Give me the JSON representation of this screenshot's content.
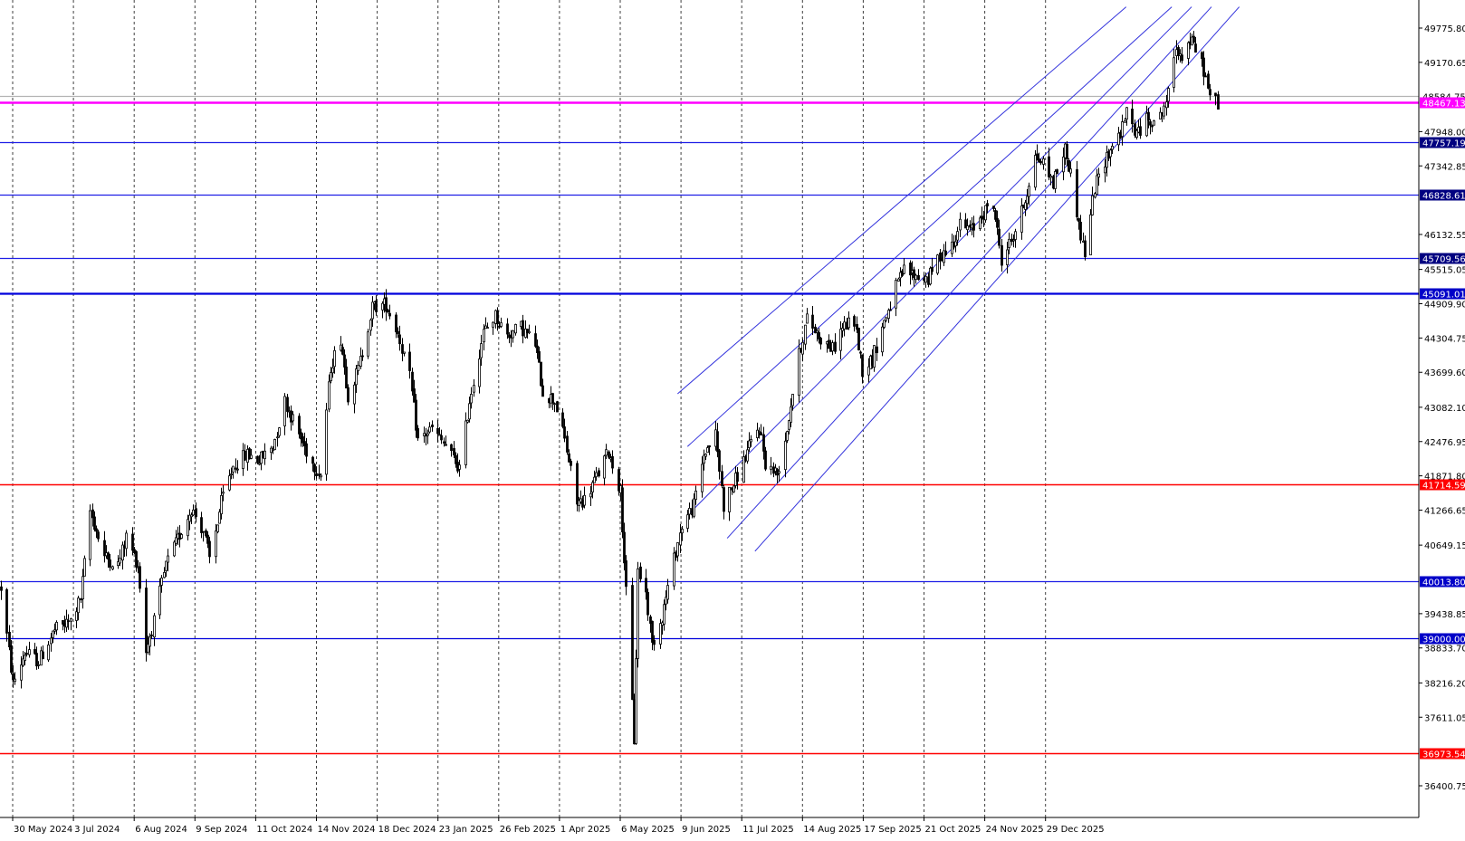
{
  "chart_data": {
    "type": "candlestick",
    "x_axis": {
      "tick_labels": [
        "30 May 2024",
        "3 Jul 2024",
        "6 Aug 2024",
        "9 Sep 2024",
        "11 Oct 2024",
        "14 Nov 2024",
        "18 Dec 2024",
        "23 Jan 2025",
        "26 Feb 2025",
        "1 Apr 2025",
        "6 May 2025",
        "9 Jun 2025",
        "11 Jul 2025",
        "14 Aug 2025",
        "17 Sep 2025",
        "21 Oct 2025",
        "24 Nov 2025",
        "29 Dec 2025"
      ],
      "grid": "vertical dotted"
    },
    "y_axis": {
      "range": [
        36200,
        50150
      ],
      "tick_labels": [
        "49775.80",
        "49170.65",
        "47948.00",
        "47342.85",
        "46132.55",
        "45515.05",
        "44909.90",
        "44304.75",
        "43699.60",
        "43082.10",
        "42476.95",
        "41871.80",
        "41266.65",
        "40649.15",
        "39438.85",
        "38833.70",
        "38216.20",
        "37611.05",
        "36400.75"
      ],
      "side": "right"
    },
    "horizontal_levels": [
      {
        "value": 48584.75,
        "label": "48584.75",
        "color": "#b4b4b4",
        "tag_bg": "#ffffff",
        "tag_fg": "#000000",
        "kind": "bid"
      },
      {
        "value": 48467.13,
        "label": "48467.13",
        "color": "#ff00ff",
        "tag_bg": "#ff00ff",
        "tag_fg": "#ffffff",
        "kind": "current"
      },
      {
        "value": 47757.19,
        "label": "47757.19",
        "color": "#1e1ee6",
        "tag_bg": "#000080",
        "tag_fg": "#ffffff",
        "kind": "level"
      },
      {
        "value": 46828.61,
        "label": "46828.61",
        "color": "#1e1ee6",
        "tag_bg": "#000080",
        "tag_fg": "#ffffff",
        "kind": "level"
      },
      {
        "value": 45709.56,
        "label": "45709.56",
        "color": "#1e1ee6",
        "tag_bg": "#000080",
        "tag_fg": "#ffffff",
        "kind": "level"
      },
      {
        "value": 45091.01,
        "label": "45091.01",
        "color": "#0000dc",
        "tag_bg": "#0000c8",
        "tag_fg": "#ffffff",
        "kind": "level-bold"
      },
      {
        "value": 41714.59,
        "label": "41714.59",
        "color": "#ff0000",
        "tag_bg": "#ff0000",
        "tag_fg": "#ffffff",
        "kind": "support"
      },
      {
        "value": 40013.8,
        "label": "40013.80",
        "color": "#1e1ee6",
        "tag_bg": "#0000c8",
        "tag_fg": "#ffffff",
        "kind": "level"
      },
      {
        "value": 39000.0,
        "label": "39000.00",
        "color": "#0000dc",
        "tag_bg": "#0000c8",
        "tag_fg": "#ffffff",
        "kind": "level"
      },
      {
        "value": 36973.54,
        "label": "36973.54",
        "color": "#ff0000",
        "tag_bg": "#ff0000",
        "tag_fg": "#ffffff",
        "kind": "support"
      }
    ],
    "trend_channel": {
      "color": "#3232dc",
      "lines": [
        {
          "from": [
            "2025-04-30",
            43320
          ],
          "to": [
            "2025-12-12",
            50150
          ]
        },
        {
          "from": [
            "2025-05-05",
            42390
          ],
          "to": [
            "2026-01-04",
            50150
          ]
        },
        {
          "from": [
            "2025-05-06",
            41210
          ],
          "to": [
            "2026-01-14",
            50150
          ]
        },
        {
          "from": [
            "2025-05-25",
            40770
          ],
          "to": [
            "2026-01-24",
            50150
          ]
        },
        {
          "from": [
            "2025-06-08",
            40540
          ],
          "to": [
            "2026-02-07",
            50150
          ]
        }
      ]
    },
    "price_path": [
      [
        "2024-05-24",
        39900
      ],
      [
        "2024-05-30",
        38200
      ],
      [
        "2024-06-05",
        38750
      ],
      [
        "2024-06-12",
        38600
      ],
      [
        "2024-06-20",
        39150
      ],
      [
        "2024-06-28",
        39300
      ],
      [
        "2024-07-03",
        39700
      ],
      [
        "2024-07-08",
        41250
      ],
      [
        "2024-07-15",
        40450
      ],
      [
        "2024-07-22",
        40300
      ],
      [
        "2024-07-26",
        40800
      ],
      [
        "2024-08-01",
        40300
      ],
      [
        "2024-08-05",
        38800
      ],
      [
        "2024-08-09",
        39300
      ],
      [
        "2024-08-15",
        40300
      ],
      [
        "2024-08-21",
        40750
      ],
      [
        "2024-08-28",
        41300
      ],
      [
        "2024-09-03",
        40900
      ],
      [
        "2024-09-06",
        40400
      ],
      [
        "2024-09-12",
        41400
      ],
      [
        "2024-09-18",
        42050
      ],
      [
        "2024-09-25",
        42250
      ],
      [
        "2024-10-01",
        42150
      ],
      [
        "2024-10-08",
        42400
      ],
      [
        "2024-10-14",
        43200
      ],
      [
        "2024-10-21",
        42600
      ],
      [
        "2024-10-28",
        42100
      ],
      [
        "2024-11-01",
        41900
      ],
      [
        "2024-11-06",
        43800
      ],
      [
        "2024-11-11",
        44300
      ],
      [
        "2024-11-15",
        43300
      ],
      [
        "2024-11-20",
        43750
      ],
      [
        "2024-11-27",
        44850
      ],
      [
        "2024-12-04",
        44900
      ],
      [
        "2024-12-10",
        44400
      ],
      [
        "2024-12-16",
        43600
      ],
      [
        "2024-12-20",
        42500
      ],
      [
        "2024-12-27",
        42700
      ],
      [
        "2025-01-03",
        42400
      ],
      [
        "2025-01-10",
        42000
      ],
      [
        "2025-01-15",
        43200
      ],
      [
        "2025-01-22",
        44400
      ],
      [
        "2025-01-28",
        44700
      ],
      [
        "2025-02-03",
        44350
      ],
      [
        "2025-02-10",
        44500
      ],
      [
        "2025-02-17",
        44200
      ],
      [
        "2025-02-21",
        43350
      ],
      [
        "2025-02-27",
        43200
      ],
      [
        "2025-03-04",
        42500
      ],
      [
        "2025-03-10",
        41400
      ],
      [
        "2025-03-14",
        41450
      ],
      [
        "2025-03-20",
        41850
      ],
      [
        "2025-03-26",
        42300
      ],
      [
        "2025-04-01",
        41600
      ],
      [
        "2025-04-04",
        39800
      ],
      [
        "2025-04-08",
        37200
      ],
      [
        "2025-04-10",
        40200
      ],
      [
        "2025-04-14",
        39800
      ],
      [
        "2025-04-17",
        38900
      ],
      [
        "2025-04-22",
        39400
      ],
      [
        "2025-04-28",
        40400
      ],
      [
        "2025-05-02",
        41000
      ],
      [
        "2025-05-08",
        41350
      ],
      [
        "2025-05-13",
        42250
      ],
      [
        "2025-05-19",
        42600
      ],
      [
        "2025-05-23",
        41350
      ],
      [
        "2025-05-29",
        41800
      ],
      [
        "2025-06-04",
        42300
      ],
      [
        "2025-06-10",
        42750
      ],
      [
        "2025-06-13",
        42100
      ],
      [
        "2025-06-19",
        41900
      ],
      [
        "2025-06-24",
        42700
      ],
      [
        "2025-06-30",
        44000
      ],
      [
        "2025-07-04",
        44650
      ],
      [
        "2025-07-11",
        44300
      ],
      [
        "2025-07-17",
        44100
      ],
      [
        "2025-07-22",
        44500
      ],
      [
        "2025-07-28",
        44600
      ],
      [
        "2025-08-01",
        43750
      ],
      [
        "2025-08-06",
        43950
      ],
      [
        "2025-08-12",
        44600
      ],
      [
        "2025-08-18",
        45200
      ],
      [
        "2025-08-22",
        45500
      ],
      [
        "2025-08-28",
        45400
      ],
      [
        "2025-09-03",
        45350
      ],
      [
        "2025-09-09",
        45750
      ],
      [
        "2025-09-15",
        45950
      ],
      [
        "2025-09-19",
        46300
      ],
      [
        "2025-09-25",
        46200
      ],
      [
        "2025-09-30",
        46500
      ],
      [
        "2025-10-06",
        46650
      ],
      [
        "2025-10-10",
        45700
      ],
      [
        "2025-10-16",
        46100
      ],
      [
        "2025-10-22",
        46750
      ],
      [
        "2025-10-27",
        47500
      ],
      [
        "2025-10-31",
        47400
      ],
      [
        "2025-11-05",
        47050
      ],
      [
        "2025-11-11",
        47650
      ],
      [
        "2025-11-14",
        47200
      ],
      [
        "2025-11-19",
        46100
      ],
      [
        "2025-11-21",
        45800
      ],
      [
        "2025-11-26",
        46950
      ],
      [
        "2025-12-01",
        47450
      ],
      [
        "2025-12-05",
        47700
      ],
      [
        "2025-12-10",
        48000
      ],
      [
        "2025-12-12",
        48300
      ],
      [
        "2025-12-17",
        47900
      ],
      [
        "2025-12-22",
        48150
      ],
      [
        "2025-12-29",
        48200
      ],
      [
        "2026-01-02",
        48600
      ],
      [
        "2026-01-06",
        49450
      ],
      [
        "2026-01-09",
        49300
      ],
      [
        "2026-01-13",
        49550
      ],
      [
        "2026-01-16",
        49400
      ],
      [
        "2026-01-20",
        49050
      ],
      [
        "2026-01-23",
        48550
      ],
      [
        "2026-01-27",
        48467
      ]
    ]
  }
}
